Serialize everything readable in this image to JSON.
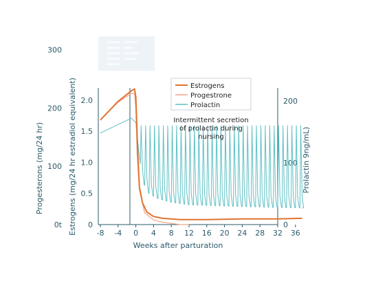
{
  "chart_data": {
    "type": "line",
    "xlabel": "Weeks after parturation",
    "x_ticks": [
      "-8",
      "-4",
      "0",
      "4",
      "8",
      "12",
      "16",
      "20",
      "24",
      "28",
      "32",
      "36"
    ],
    "xlim": [
      -8,
      37.5
    ],
    "y_axes": [
      {
        "name": "progesterone",
        "label": "Progesterons (mg/24 hr)",
        "ticks": [
          "0t",
          "100",
          "200",
          "300"
        ],
        "range": [
          0,
          350
        ]
      },
      {
        "name": "estrogens",
        "label": "Estrogens (mg/24 hr estradiol equivalent)",
        "ticks": [
          "0",
          "0.5",
          "1.0",
          "1.5",
          "2.0"
        ],
        "range": [
          0,
          2.2
        ]
      },
      {
        "name": "prolactin",
        "label": "Prolactin 9ng/mL)",
        "ticks": [
          "0",
          "100",
          "200"
        ],
        "range": [
          0,
          240
        ]
      }
    ],
    "legend": {
      "position": "top-center",
      "entries": [
        "Estrogens",
        "Progestrone",
        "Prolactin"
      ]
    },
    "annotation": [
      "Intermittent secretion",
      "of prolactin during",
      "nursing"
    ],
    "series": [
      {
        "name": "Estrogens",
        "axis": "estrogens",
        "color": "#e0732e",
        "x": [
          -8,
          -4,
          -1,
          -0.3,
          0,
          0.4,
          0.8,
          1.5,
          2.5,
          4,
          6,
          10,
          16,
          24,
          32,
          37.5
        ],
        "y": [
          1.68,
          1.98,
          2.15,
          2.18,
          2.05,
          1.2,
          0.6,
          0.35,
          0.2,
          0.13,
          0.1,
          0.08,
          0.08,
          0.09,
          0.09,
          0.1
        ]
      },
      {
        "name": "Progestrone",
        "axis": "progesterone",
        "color": "#f2a488",
        "x": [
          -8,
          -4,
          -1,
          -0.3,
          0,
          0.3,
          0.8,
          2,
          4,
          6,
          8,
          10,
          12
        ],
        "y": [
          180,
          210,
          225,
          225,
          200,
          120,
          60,
          20,
          8,
          4,
          2,
          0,
          0
        ]
      },
      {
        "name": "Prolactin",
        "axis": "prolactin",
        "color": "#5dc0c4",
        "baseline": {
          "x": [
            -8,
            -4,
            -1,
            0,
            0.8,
            1.5,
            3,
            5,
            8,
            12,
            20,
            30,
            37.5
          ],
          "y": [
            148,
            162,
            172,
            165,
            110,
            70,
            50,
            42,
            36,
            32,
            30,
            28,
            27
          ]
        },
        "pulses": {
          "start_week": 1,
          "end_week": 37,
          "interval_weeks": 1,
          "peak": 160
        }
      }
    ]
  }
}
